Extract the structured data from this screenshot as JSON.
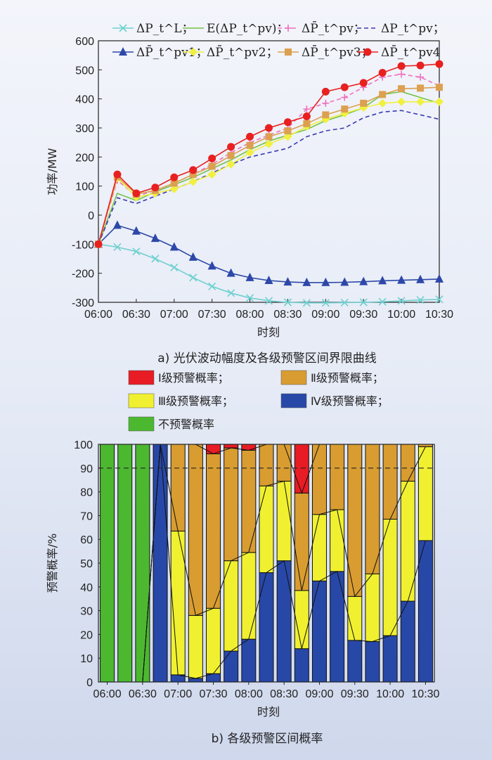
{
  "chart_data": [
    {
      "type": "line",
      "caption": "a) 光伏波动幅度及各级预警区间界限曲线",
      "xlabel": "时刻",
      "ylabel": "功率/MW",
      "ylim": [
        -300,
        600
      ],
      "yticks": [
        -300,
        -200,
        -100,
        0,
        100,
        200,
        300,
        400,
        500,
        600
      ],
      "x_tick_labels": [
        "06:00",
        "06:30",
        "07:00",
        "07:30",
        "08:00",
        "08:30",
        "09:00",
        "09:30",
        "10:00",
        "10:30"
      ],
      "x": [
        "06:00",
        "06:15",
        "06:30",
        "06:45",
        "07:00",
        "07:15",
        "07:30",
        "07:45",
        "08:00",
        "08:15",
        "08:30",
        "08:45",
        "09:00",
        "09:15",
        "09:30",
        "09:45",
        "10:00",
        "10:15",
        "10:30"
      ],
      "legend_position": "top",
      "series": [
        {
          "name": "ΔP_t^L；",
          "color": "#6fd0d0",
          "marker": "x",
          "dash": "",
          "values": [
            -100,
            -110,
            -125,
            -150,
            -180,
            -215,
            -245,
            -268,
            -285,
            -295,
            -300,
            -302,
            -302,
            -301,
            -300,
            -298,
            -295,
            -292,
            -290
          ]
        },
        {
          "name": "E(ΔP_t^pv)；",
          "color": "#74c24a",
          "marker": "none",
          "dash": "",
          "values": [
            -100,
            75,
            50,
            80,
            105,
            130,
            160,
            190,
            225,
            255,
            275,
            295,
            325,
            345,
            370,
            415,
            425,
            405,
            385
          ]
        },
        {
          "name": "ΔP̄_t^pv；",
          "color": "#f070c0",
          "marker": "plus",
          "dash": "6,4",
          "values": [
            -100,
            120,
            65,
            85,
            110,
            140,
            175,
            215,
            250,
            275,
            300,
            365,
            385,
            405,
            440,
            475,
            485,
            475,
            445
          ]
        },
        {
          "name": "ΔP_t^pv；",
          "color": "#3a3ab0",
          "marker": "none",
          "dash": "6,4",
          "values": [
            -100,
            60,
            40,
            65,
            90,
            115,
            145,
            175,
            200,
            215,
            230,
            270,
            290,
            300,
            335,
            355,
            360,
            345,
            330
          ]
        },
        {
          "name": "ΔP̄_t^pv1；",
          "color": "#2d48a8",
          "marker": "triangle",
          "dash": "",
          "values": [
            -100,
            -35,
            -55,
            -80,
            -110,
            -145,
            -175,
            -200,
            -215,
            -225,
            -230,
            -232,
            -232,
            -231,
            -229,
            -226,
            -224,
            -222,
            -220
          ]
        },
        {
          "name": "ΔP̄_t^pv2；",
          "color": "#f0f040",
          "marker": "diamond",
          "dash": "",
          "values": [
            -100,
            128,
            62,
            75,
            90,
            115,
            140,
            175,
            215,
            245,
            270,
            305,
            330,
            350,
            370,
            385,
            390,
            390,
            390
          ]
        },
        {
          "name": "ΔP̄_t^pv3；",
          "color": "#dca050",
          "marker": "square",
          "dash": "",
          "values": [
            -100,
            132,
            72,
            85,
            110,
            140,
            168,
            205,
            240,
            270,
            290,
            315,
            345,
            365,
            385,
            415,
            435,
            437,
            440
          ]
        },
        {
          "name": "ΔP̄_t^pv4",
          "color": "#e82020",
          "marker": "circle",
          "dash": "",
          "values": [
            -100,
            140,
            75,
            95,
            130,
            155,
            195,
            235,
            270,
            300,
            320,
            340,
            425,
            440,
            455,
            490,
            513,
            515,
            520
          ]
        }
      ]
    },
    {
      "type": "bar",
      "stacked": true,
      "caption": "b) 各级预警区间概率",
      "xlabel": "时刻",
      "ylabel": "预警概率/%",
      "ylim": [
        0,
        100
      ],
      "yticks": [
        0,
        10,
        20,
        30,
        40,
        50,
        60,
        70,
        80,
        90,
        100
      ],
      "x_tick_labels": [
        "06:00",
        "06:30",
        "07:00",
        "07:30",
        "08:00",
        "08:30",
        "09:00",
        "09:30",
        "10:00",
        "10:30"
      ],
      "threshold": 90,
      "categories": [
        "06:00",
        "06:15",
        "06:30",
        "06:45",
        "07:00",
        "07:15",
        "07:30",
        "07:45",
        "08:00",
        "08:15",
        "08:30",
        "08:45",
        "09:00",
        "09:15",
        "09:30",
        "09:45",
        "10:00",
        "10:15",
        "10:30"
      ],
      "series": [
        {
          "name": "Ⅳ级预警概率；",
          "color": "#2848a8",
          "values": [
            0,
            0,
            0,
            100,
            3,
            1.5,
            3.5,
            13,
            18,
            46,
            51,
            14,
            42.5,
            46.5,
            17.5,
            17,
            19.5,
            34,
            59.5
          ]
        },
        {
          "name": "Ⅲ级预警概率；",
          "color": "#f0f030",
          "values": [
            0,
            0,
            0,
            0,
            60.5,
            26.5,
            27.5,
            38,
            36.5,
            36.5,
            33.5,
            24.5,
            28,
            26,
            18.5,
            28.5,
            49,
            50.5,
            39.5
          ]
        },
        {
          "name": "Ⅱ级预警概率；",
          "color": "#d89c30",
          "values": [
            0,
            0,
            0,
            0,
            36.5,
            72,
            65,
            47.5,
            43,
            17.5,
            15.5,
            41,
            29.5,
            27.5,
            64,
            54.5,
            31.5,
            15.5,
            1
          ]
        },
        {
          "name": "Ⅰ级预警概率；",
          "color": "#e81c24",
          "values": [
            0,
            0,
            0,
            0,
            0,
            0,
            4,
            1.5,
            2.5,
            0,
            0,
            20.5,
            0,
            0,
            0,
            0,
            0,
            0,
            0
          ]
        },
        {
          "name": "不预警概率",
          "color": "#4cb830",
          "values": [
            100,
            100,
            100,
            0,
            0,
            0,
            0,
            0,
            0,
            0,
            0,
            0,
            0,
            0,
            0,
            0,
            0,
            0,
            0
          ]
        }
      ]
    }
  ]
}
